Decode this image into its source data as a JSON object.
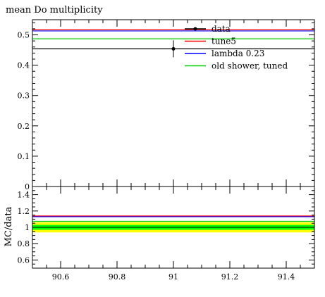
{
  "chart_data": {
    "type": "line",
    "title": "mean D0 multiplicity",
    "title_display": "mean Do multiplicity",
    "legend_position": "top-right",
    "main": {
      "xlim": [
        90.5,
        91.5
      ],
      "ylim": [
        0,
        0.55
      ],
      "y_ticks": [
        0,
        0.1,
        0.2,
        0.3,
        0.4,
        0.5
      ],
      "y_tick_labels": [
        "0",
        "0.1",
        "0.2",
        "0.3",
        "0.4",
        "0.5"
      ],
      "series": [
        {
          "name": "data",
          "color": "#000000",
          "kind": "point_with_line",
          "x": 91.0,
          "y": 0.454,
          "yerr": 0.028
        },
        {
          "name": "tune5",
          "color": "#ff0000",
          "kind": "flat",
          "y": 0.517
        },
        {
          "name": "lambda 0.23",
          "color": "#0000ff",
          "kind": "flat",
          "y": 0.513
        },
        {
          "name": "old shower, tuned",
          "color": "#00cc00",
          "kind": "flat",
          "y": 0.487
        }
      ]
    },
    "ratio": {
      "ylabel": "MC/data",
      "ylim": [
        0.5,
        1.5
      ],
      "y_ticks": [
        0.6,
        0.8,
        1.0,
        1.2,
        1.4
      ],
      "y_tick_labels": [
        "0.6",
        "0.8",
        "1",
        "1.2",
        "1.4"
      ],
      "band_outer": [
        0.938,
        1.062
      ],
      "band_inner": [
        0.97,
        1.03
      ],
      "band_outer_color": "#ffff00",
      "band_inner_color": "#00ff00",
      "series": [
        {
          "name": "tune5",
          "color": "#ff0000",
          "y": 1.139
        },
        {
          "name": "lambda 0.23",
          "color": "#0000ff",
          "y": 1.13
        },
        {
          "name": "old shower, tuned",
          "color": "#00cc00",
          "y": 1.073
        }
      ]
    },
    "x_ticks": [
      90.6,
      90.8,
      91.0,
      91.2,
      91.4
    ],
    "x_tick_labels": [
      "90.6",
      "90.8",
      "91",
      "91.2",
      "91.4"
    ]
  }
}
